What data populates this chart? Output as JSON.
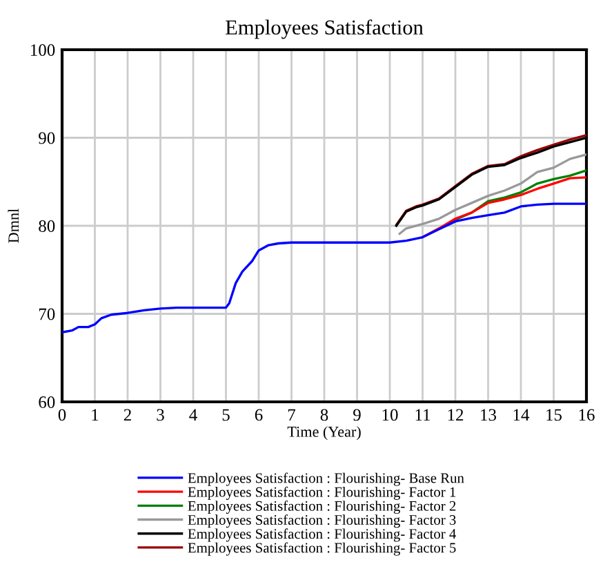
{
  "chart_data": {
    "type": "line",
    "title": "Employees Satisfaction",
    "xlabel": "Time (Year)",
    "ylabel": "Dmnl",
    "xlim": [
      0,
      16
    ],
    "xticks": [
      0,
      1,
      2,
      3,
      4,
      5,
      6,
      7,
      8,
      9,
      10,
      11,
      12,
      13,
      14,
      15,
      16
    ],
    "ylim": [
      60,
      100
    ],
    "yticks": [
      60,
      70,
      80,
      90,
      100
    ],
    "grid": true,
    "legend": "bottom",
    "line_style": "solid",
    "series": [
      {
        "name": "Employees Satisfaction : Flourishing- Base Run",
        "color": "#0000ff",
        "x": [
          0,
          0.3,
          0.5,
          0.8,
          1,
          1.2,
          1.5,
          2,
          2.5,
          3,
          3.5,
          4,
          5,
          5.1,
          5.3,
          5.5,
          5.8,
          6,
          6.3,
          6.6,
          7,
          8,
          9,
          10,
          10.5,
          11,
          11.5,
          12,
          12.5,
          13,
          13.5,
          14,
          14.5,
          15,
          16
        ],
        "values": [
          67.9,
          68.1,
          68.5,
          68.5,
          68.8,
          69.5,
          69.9,
          70.1,
          70.4,
          70.6,
          70.7,
          70.7,
          70.7,
          71.2,
          73.5,
          74.8,
          76,
          77.2,
          77.8,
          78.0,
          78.1,
          78.1,
          78.1,
          78.1,
          78.3,
          78.7,
          79.6,
          80.5,
          80.9,
          81.2,
          81.5,
          82.2,
          82.4,
          82.5,
          82.5
        ]
      },
      {
        "name": "Employees Satisfaction : Flourishing- Factor 1",
        "color": "#ff0000",
        "x": [
          11,
          11.5,
          12,
          12.5,
          13,
          13.5,
          14,
          14.5,
          15,
          15.5,
          16
        ],
        "values": [
          78.7,
          79.7,
          80.8,
          81.5,
          82.6,
          83.0,
          83.5,
          84.2,
          84.8,
          85.4,
          85.5
        ]
      },
      {
        "name": "Employees Satisfaction : Flourishing- Factor 2",
        "color": "#008000",
        "x": [
          12,
          12.5,
          13,
          13.5,
          14,
          14.5,
          15,
          15.5,
          16
        ],
        "values": [
          80.7,
          81.5,
          82.8,
          83.2,
          83.8,
          84.8,
          85.3,
          85.7,
          86.3
        ]
      },
      {
        "name": "Employees Satisfaction : Flourishing- Factor 3",
        "color": "#999999",
        "x": [
          10.3,
          10.5,
          11,
          11.5,
          12,
          12.5,
          13,
          13.5,
          14,
          14.5,
          15,
          15.5,
          16
        ],
        "values": [
          79.1,
          79.7,
          80.2,
          80.8,
          81.8,
          82.6,
          83.4,
          84.0,
          84.8,
          86.1,
          86.6,
          87.6,
          88.1
        ]
      },
      {
        "name": "Employees Satisfaction : Flourishing- Factor 4",
        "color": "#000000",
        "x": [
          10.2,
          10.5,
          10.8,
          11,
          11.5,
          12,
          12.5,
          13,
          13.5,
          14,
          14.5,
          15,
          15.5,
          16
        ],
        "values": [
          80.0,
          81.6,
          82.1,
          82.3,
          83.0,
          84.4,
          85.8,
          86.7,
          86.9,
          87.7,
          88.3,
          89.0,
          89.5,
          90.0
        ]
      },
      {
        "name": "Employees Satisfaction : Flourishing- Factor 5",
        "color": "#990000",
        "x": [
          10.2,
          10.5,
          10.8,
          11,
          11.5,
          12,
          12.5,
          13,
          13.5,
          14,
          14.5,
          15,
          15.5,
          16
        ],
        "values": [
          80.1,
          81.7,
          82.2,
          82.4,
          83.1,
          84.5,
          85.9,
          86.8,
          87.0,
          87.9,
          88.6,
          89.2,
          89.8,
          90.3
        ]
      }
    ]
  }
}
